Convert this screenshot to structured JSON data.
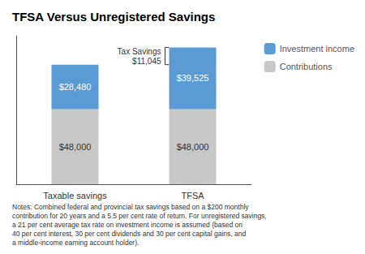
{
  "chart_data": {
    "type": "bar",
    "title": "TFSA Versus Unregistered Savings",
    "categories": [
      "Taxable savings",
      "TFSA"
    ],
    "series": [
      {
        "name": "Contributions",
        "color": "#c8c8c8",
        "values": [
          48000,
          48000
        ],
        "value_labels": [
          "$48,000",
          "$48,000"
        ]
      },
      {
        "name": "Investment income",
        "color": "#5b9bd5",
        "values": [
          28480,
          39525
        ],
        "value_labels": [
          "$28,480",
          "$39,525"
        ]
      }
    ],
    "stacked": true,
    "data_labels": true,
    "ylim": [
      0,
      95000
    ],
    "tick_labels": "x",
    "grid": false,
    "legend": "upper right",
    "annotations": [
      "Tax Savings\n$11,045"
    ],
    "notes": "Notes: Combined federal and provincial tax savings based on a $200 monthly\ncontribution for 20 years and a 5.5 per cent rate of return. For unregistered savings,\na 21 per cent average tax rate on investment income is assumed (based on\n40 per cent interest, 30 per cent dividends and 30 per cent capital gains, and\na middle-income earning account holder)."
  }
}
